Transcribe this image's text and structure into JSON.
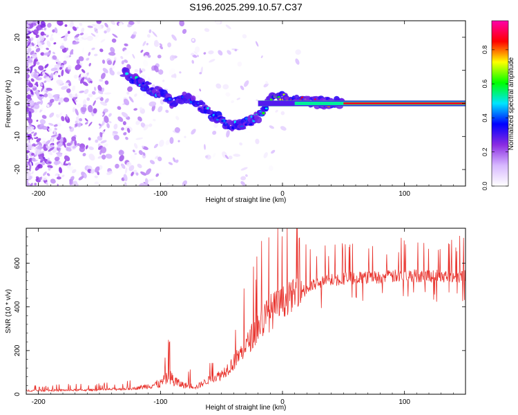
{
  "figure": {
    "title": "S196.2025.299.10.57.C37"
  },
  "chart_data": [
    {
      "type": "heatmap",
      "name": "spectrogram",
      "title": "S196.2025.299.10.57.C37",
      "xlabel": "Height of straight line (km)",
      "ylabel": "Frequency (Hz)",
      "xlim": [
        -210,
        150
      ],
      "ylim": [
        -25,
        25
      ],
      "xticks": [
        -200,
        -100,
        0,
        100
      ],
      "yticks": [
        -20,
        -10,
        0,
        10,
        20
      ],
      "colorbar": {
        "label": "Normalized spectral amplitude",
        "range": [
          0,
          0.97
        ],
        "ticks": [
          0.0,
          0.2,
          0.4,
          0.6,
          0.8
        ],
        "colors": [
          "#ffffff",
          "#d7b8ff",
          "#8a2be2",
          "#0000ff",
          "#00e5ff",
          "#00ff00",
          "#ffff00",
          "#ff0000",
          "#ff00aa"
        ]
      },
      "ridge": {
        "description": "dominant frequency ridge",
        "x": [
          -130,
          -115,
          -100,
          -90,
          -80,
          -70,
          -60,
          -50,
          -40,
          -30,
          -20,
          -10,
          0,
          10,
          20,
          40,
          60,
          100,
          150
        ],
        "y": [
          9,
          6,
          3,
          0,
          2,
          0,
          -3,
          -5,
          -7,
          -6,
          -4,
          1,
          2,
          1,
          0.5,
          0.3,
          0,
          0,
          0
        ],
        "amplitude": [
          0.3,
          0.35,
          0.3,
          0.25,
          0.2,
          0.25,
          0.3,
          0.3,
          0.3,
          0.3,
          0.35,
          0.5,
          0.6,
          0.65,
          0.7,
          0.75,
          0.9,
          0.9,
          0.9
        ]
      }
    },
    {
      "type": "line",
      "name": "snr",
      "xlabel": "Height of straight line (km)",
      "ylabel": "SNR (10 * v/v)",
      "xlim": [
        -210,
        150
      ],
      "ylim": [
        0,
        760
      ],
      "xticks": [
        -200,
        -100,
        0,
        100
      ],
      "yticks": [
        0,
        200,
        400,
        600
      ],
      "color": "#e8302a",
      "envelope": {
        "x": [
          -210,
          -150,
          -120,
          -100,
          -95,
          -90,
          -85,
          -80,
          -70,
          -60,
          -50,
          -40,
          -30,
          -20,
          -10,
          0,
          10,
          20,
          30,
          40,
          50,
          60,
          80,
          100,
          120,
          150
        ],
        "base": [
          15,
          18,
          25,
          40,
          60,
          50,
          40,
          35,
          30,
          60,
          80,
          130,
          200,
          280,
          340,
          390,
          430,
          470,
          500,
          510,
          520,
          520,
          525,
          530,
          530,
          530
        ],
        "spike": [
          25,
          30,
          40,
          120,
          200,
          240,
          120,
          80,
          70,
          100,
          150,
          220,
          280,
          450,
          500,
          430,
          420,
          200,
          150,
          180,
          190,
          170,
          170,
          180,
          180,
          180
        ]
      },
      "notable_values": {
        "peak_near_minus_90": 270,
        "peak_near_minus_15": 630,
        "max_near_100": 760
      }
    }
  ]
}
